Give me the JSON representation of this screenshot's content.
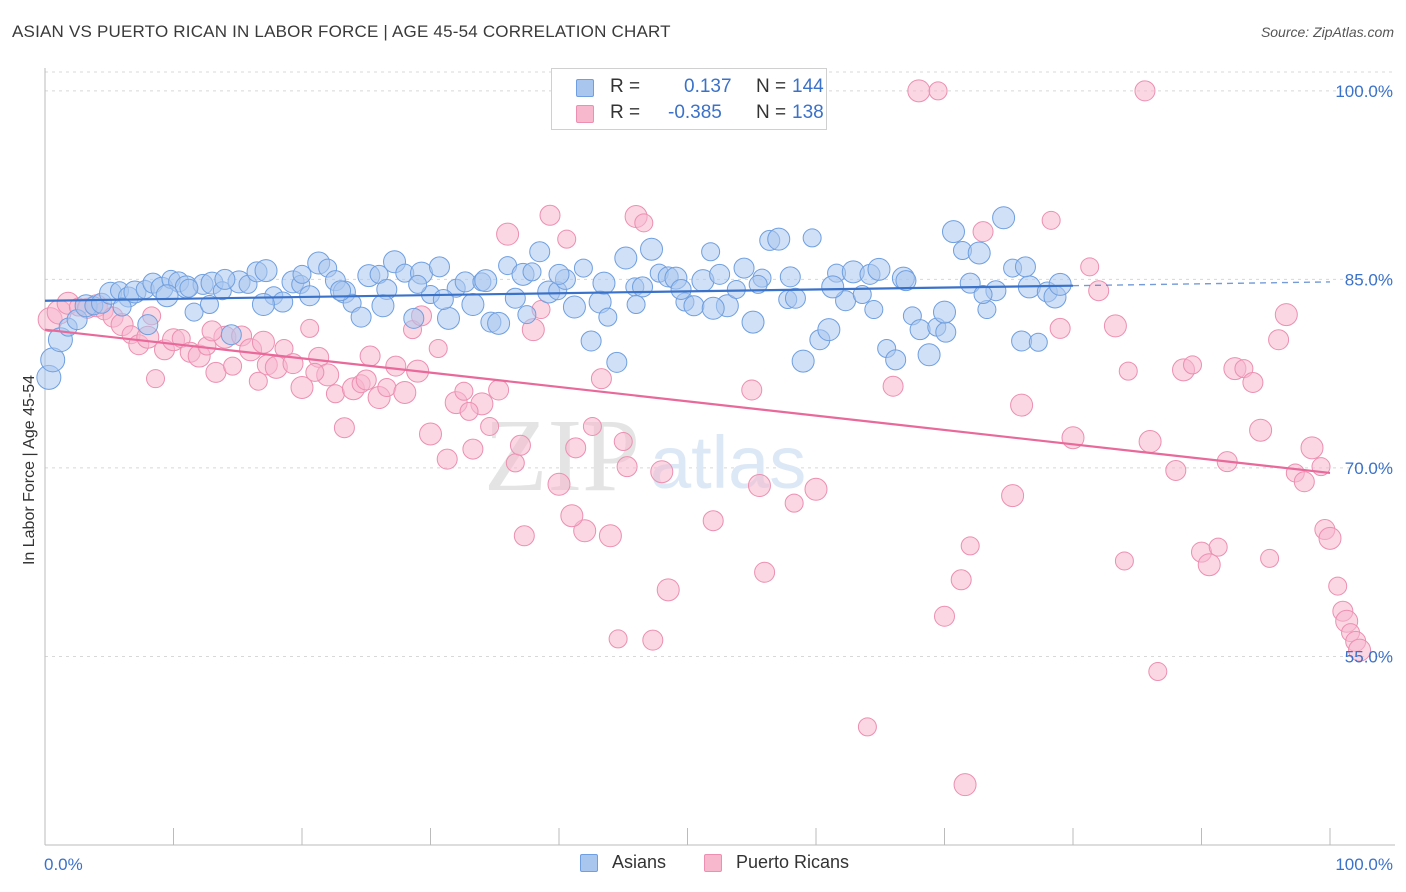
{
  "title": "ASIAN VS PUERTO RICAN IN LABOR FORCE | AGE 45-54 CORRELATION CHART",
  "source": "Source: ZipAtlas.com",
  "watermark": {
    "zip": "ZIP",
    "atlas": "atlas"
  },
  "legend_top": {
    "asian": {
      "r_label": "R =",
      "r_value": "0.137",
      "n_label": "N =",
      "n_value": "144"
    },
    "pr": {
      "r_label": "R =",
      "r_value": "-0.385",
      "n_label": "N =",
      "n_value": "138"
    }
  },
  "legend_bottom": {
    "asian": "Asians",
    "pr": "Puerto Ricans"
  },
  "colors": {
    "asian_fill": "#a9c6ef",
    "asian_stroke": "#6f9fe0",
    "asian_line": "#3b72c9",
    "pr_fill": "#f7b7cd",
    "pr_stroke": "#ec8fb0",
    "pr_line": "#e8699a",
    "tick_label": "#3b72c9",
    "grid": "#d8d8d8"
  },
  "chart_data": {
    "type": "scatter",
    "title": "ASIAN VS PUERTO RICAN IN LABOR FORCE | AGE 45-54 CORRELATION CHART",
    "xlabel": "",
    "ylabel": "In Labor Force | Age 45-54",
    "xlim": [
      0,
      100
    ],
    "ylim": [
      40,
      101.5
    ],
    "x_tick_labels": [
      "0.0%",
      "100.0%"
    ],
    "y_ticks": [
      55,
      70,
      85,
      100
    ],
    "y_tick_labels": [
      "55.0%",
      "70.0%",
      "85.0%",
      "100.0%"
    ],
    "grid": true,
    "legend_position": "top-center",
    "series": [
      {
        "name": "Asians",
        "r": 0.137,
        "n": 144,
        "trend": {
          "x": [
            0,
            80
          ],
          "y": [
            83.3,
            84.5
          ],
          "dashed_to_x": 100,
          "dashed_to_y": 84.8
        },
        "points": [
          [
            0.3,
            77.2
          ],
          [
            0.6,
            78.6
          ],
          [
            1.2,
            80.2
          ],
          [
            1.8,
            81.2
          ],
          [
            2.5,
            81.8
          ],
          [
            3.2,
            82.9
          ],
          [
            3.8,
            82.9
          ],
          [
            4.4,
            83.1
          ],
          [
            5.1,
            83.9
          ],
          [
            5.8,
            84.1
          ],
          [
            6.5,
            83.6
          ],
          [
            7.0,
            84.0
          ],
          [
            7.8,
            84.2
          ],
          [
            8.4,
            84.7
          ],
          [
            9.1,
            84.3
          ],
          [
            9.8,
            85.0
          ],
          [
            10.4,
            84.8
          ],
          [
            11.0,
            84.4
          ],
          [
            11.6,
            82.4
          ],
          [
            12.3,
            84.6
          ],
          [
            13.0,
            84.7
          ],
          [
            13.8,
            84.1
          ],
          [
            14.5,
            80.6
          ],
          [
            15.1,
            84.8
          ],
          [
            15.8,
            84.6
          ],
          [
            16.5,
            85.6
          ],
          [
            17.2,
            85.7
          ],
          [
            17.8,
            83.7
          ],
          [
            18.5,
            83.2
          ],
          [
            19.3,
            84.8
          ],
          [
            19.9,
            84.6
          ],
          [
            20.6,
            83.7
          ],
          [
            21.3,
            86.3
          ],
          [
            22.0,
            85.9
          ],
          [
            22.6,
            84.9
          ],
          [
            23.3,
            84.0
          ],
          [
            23.9,
            83.1
          ],
          [
            24.6,
            82.0
          ],
          [
            25.2,
            85.3
          ],
          [
            26.0,
            85.4
          ],
          [
            26.6,
            84.2
          ],
          [
            27.2,
            86.4
          ],
          [
            28.0,
            85.5
          ],
          [
            28.7,
            81.9
          ],
          [
            29.3,
            85.5
          ],
          [
            30.0,
            83.8
          ],
          [
            30.7,
            86.0
          ],
          [
            31.4,
            81.9
          ],
          [
            32.0,
            84.3
          ],
          [
            32.7,
            84.8
          ],
          [
            33.3,
            83.0
          ],
          [
            34.0,
            84.8
          ],
          [
            34.7,
            81.6
          ],
          [
            35.3,
            81.5
          ],
          [
            36.0,
            86.1
          ],
          [
            36.6,
            83.5
          ],
          [
            37.2,
            85.4
          ],
          [
            37.9,
            85.6
          ],
          [
            38.5,
            87.2
          ],
          [
            39.2,
            84.0
          ],
          [
            39.9,
            84.1
          ],
          [
            40.5,
            85.0
          ],
          [
            41.2,
            82.8
          ],
          [
            41.9,
            85.9
          ],
          [
            42.5,
            80.1
          ],
          [
            43.2,
            83.2
          ],
          [
            43.8,
            82.0
          ],
          [
            44.5,
            78.4
          ],
          [
            45.2,
            86.7
          ],
          [
            45.9,
            84.4
          ],
          [
            46.5,
            84.4
          ],
          [
            47.2,
            87.4
          ],
          [
            47.8,
            85.5
          ],
          [
            48.5,
            85.2
          ],
          [
            49.1,
            85.1
          ],
          [
            49.8,
            83.2
          ],
          [
            50.5,
            82.9
          ],
          [
            51.2,
            84.9
          ],
          [
            51.8,
            87.2
          ],
          [
            52.5,
            85.4
          ],
          [
            53.1,
            82.9
          ],
          [
            53.8,
            84.2
          ],
          [
            54.4,
            85.9
          ],
          [
            55.1,
            81.6
          ],
          [
            55.8,
            85.1
          ],
          [
            56.4,
            88.1
          ],
          [
            57.1,
            88.2
          ],
          [
            57.8,
            83.4
          ],
          [
            58.4,
            83.5
          ],
          [
            59.0,
            78.5
          ],
          [
            59.7,
            88.3
          ],
          [
            60.3,
            80.2
          ],
          [
            61.0,
            81.0
          ],
          [
            61.6,
            85.5
          ],
          [
            62.3,
            83.3
          ],
          [
            62.9,
            85.6
          ],
          [
            63.6,
            83.8
          ],
          [
            64.2,
            85.4
          ],
          [
            64.9,
            85.8
          ],
          [
            65.5,
            79.5
          ],
          [
            66.2,
            78.6
          ],
          [
            66.8,
            85.1
          ],
          [
            67.5,
            82.1
          ],
          [
            68.1,
            81.0
          ],
          [
            68.8,
            79.0
          ],
          [
            69.4,
            81.2
          ],
          [
            70.1,
            80.8
          ],
          [
            70.7,
            88.8
          ],
          [
            71.4,
            87.3
          ],
          [
            72.0,
            84.7
          ],
          [
            72.7,
            87.1
          ],
          [
            73.3,
            82.6
          ],
          [
            74.0,
            84.1
          ],
          [
            74.6,
            89.9
          ],
          [
            75.3,
            85.9
          ],
          [
            76.0,
            80.1
          ],
          [
            76.6,
            84.4
          ],
          [
            77.3,
            80.0
          ],
          [
            78.0,
            84.0
          ],
          [
            78.6,
            83.6
          ],
          [
            11.2,
            84.3
          ],
          [
            14.0,
            85.0
          ],
          [
            17.0,
            83.0
          ],
          [
            20.0,
            85.4
          ],
          [
            23.0,
            84.1
          ],
          [
            26.3,
            82.9
          ],
          [
            29.0,
            84.6
          ],
          [
            31.0,
            83.4
          ],
          [
            34.3,
            84.9
          ],
          [
            37.5,
            82.2
          ],
          [
            40.0,
            85.4
          ],
          [
            43.5,
            84.7
          ],
          [
            46.0,
            83.0
          ],
          [
            49.5,
            84.2
          ],
          [
            52.0,
            82.7
          ],
          [
            55.5,
            84.6
          ],
          [
            58.0,
            85.2
          ],
          [
            61.3,
            84.4
          ],
          [
            64.5,
            82.6
          ],
          [
            67.0,
            84.9
          ],
          [
            70.0,
            82.4
          ],
          [
            73.0,
            83.8
          ],
          [
            76.3,
            86.0
          ],
          [
            79.0,
            84.6
          ],
          [
            6.0,
            82.8
          ],
          [
            8.0,
            81.4
          ],
          [
            9.5,
            83.7
          ],
          [
            12.8,
            83.0
          ]
        ]
      },
      {
        "name": "Puerto Ricans",
        "r": -0.385,
        "n": 138,
        "trend": {
          "x": [
            0,
            100
          ],
          "y": [
            81.0,
            69.6
          ]
        },
        "points": [
          [
            0.4,
            81.8
          ],
          [
            1.1,
            82.4
          ],
          [
            1.8,
            83.1
          ],
          [
            2.6,
            82.8
          ],
          [
            3.3,
            82.7
          ],
          [
            4.0,
            82.9
          ],
          [
            4.6,
            82.5
          ],
          [
            5.3,
            82.0
          ],
          [
            6.0,
            81.4
          ],
          [
            6.7,
            80.6
          ],
          [
            7.3,
            79.8
          ],
          [
            8.0,
            80.4
          ],
          [
            8.6,
            77.1
          ],
          [
            9.3,
            79.4
          ],
          [
            10.0,
            80.2
          ],
          [
            10.6,
            80.3
          ],
          [
            11.3,
            79.2
          ],
          [
            12.0,
            78.9
          ],
          [
            12.6,
            79.7
          ],
          [
            13.3,
            77.6
          ],
          [
            14.0,
            80.4
          ],
          [
            14.6,
            78.1
          ],
          [
            15.3,
            80.5
          ],
          [
            16.0,
            79.4
          ],
          [
            16.6,
            76.9
          ],
          [
            17.3,
            78.2
          ],
          [
            18.0,
            78.0
          ],
          [
            18.6,
            79.5
          ],
          [
            19.3,
            78.3
          ],
          [
            20.0,
            76.4
          ],
          [
            20.6,
            81.1
          ],
          [
            21.3,
            78.8
          ],
          [
            22.0,
            77.4
          ],
          [
            22.6,
            75.9
          ],
          [
            23.3,
            73.2
          ],
          [
            24.0,
            76.3
          ],
          [
            24.6,
            76.7
          ],
          [
            25.3,
            78.9
          ],
          [
            26.0,
            75.6
          ],
          [
            26.6,
            76.4
          ],
          [
            27.3,
            78.1
          ],
          [
            28.0,
            76.0
          ],
          [
            28.6,
            81.0
          ],
          [
            29.3,
            82.1
          ],
          [
            30.0,
            72.7
          ],
          [
            30.6,
            79.5
          ],
          [
            31.3,
            70.7
          ],
          [
            32.0,
            75.2
          ],
          [
            32.6,
            76.1
          ],
          [
            33.3,
            71.5
          ],
          [
            34.0,
            75.1
          ],
          [
            34.6,
            73.3
          ],
          [
            35.3,
            76.2
          ],
          [
            36.0,
            88.6
          ],
          [
            36.6,
            70.4
          ],
          [
            37.3,
            64.6
          ],
          [
            38.0,
            81.0
          ],
          [
            38.6,
            82.6
          ],
          [
            39.3,
            90.1
          ],
          [
            40.0,
            68.7
          ],
          [
            40.6,
            88.2
          ],
          [
            41.3,
            71.6
          ],
          [
            42.0,
            65.0
          ],
          [
            42.6,
            73.3
          ],
          [
            43.3,
            77.1
          ],
          [
            44.0,
            64.6
          ],
          [
            44.6,
            56.4
          ],
          [
            45.3,
            70.1
          ],
          [
            46.0,
            90.0
          ],
          [
            46.6,
            89.5
          ],
          [
            47.3,
            56.3
          ],
          [
            48.0,
            69.7
          ],
          [
            49.3,
            100.0
          ],
          [
            55.0,
            76.2
          ],
          [
            55.6,
            68.6
          ],
          [
            58.3,
            67.2
          ],
          [
            66.0,
            76.5
          ],
          [
            68.0,
            100.0
          ],
          [
            69.5,
            100.0
          ],
          [
            71.3,
            61.1
          ],
          [
            71.6,
            44.8
          ],
          [
            72.0,
            63.8
          ],
          [
            73.0,
            88.8
          ],
          [
            75.3,
            67.8
          ],
          [
            78.3,
            89.7
          ],
          [
            79.0,
            81.1
          ],
          [
            80.0,
            72.4
          ],
          [
            81.3,
            86.0
          ],
          [
            82.0,
            84.1
          ],
          [
            83.3,
            81.3
          ],
          [
            84.3,
            77.7
          ],
          [
            85.6,
            100.0
          ],
          [
            86.0,
            72.1
          ],
          [
            86.6,
            53.8
          ],
          [
            88.0,
            69.8
          ],
          [
            88.6,
            77.8
          ],
          [
            89.3,
            78.2
          ],
          [
            90.0,
            63.3
          ],
          [
            90.6,
            62.3
          ],
          [
            91.3,
            63.7
          ],
          [
            92.0,
            70.5
          ],
          [
            92.6,
            77.9
          ],
          [
            93.3,
            77.9
          ],
          [
            94.0,
            76.8
          ],
          [
            94.6,
            73.0
          ],
          [
            95.3,
            62.8
          ],
          [
            96.0,
            80.2
          ],
          [
            96.6,
            82.2
          ],
          [
            97.3,
            69.6
          ],
          [
            98.0,
            68.9
          ],
          [
            98.6,
            71.6
          ],
          [
            99.3,
            70.1
          ],
          [
            99.6,
            65.1
          ],
          [
            100.0,
            64.4
          ],
          [
            100.6,
            60.6
          ],
          [
            101.0,
            58.6
          ],
          [
            101.3,
            57.8
          ],
          [
            101.6,
            56.9
          ],
          [
            102.0,
            56.2
          ],
          [
            102.3,
            55.5
          ],
          [
            8.3,
            82.1
          ],
          [
            13.0,
            80.9
          ],
          [
            17.0,
            80.0
          ],
          [
            21.0,
            77.6
          ],
          [
            25.0,
            77.0
          ],
          [
            29.0,
            77.7
          ],
          [
            33.0,
            74.5
          ],
          [
            37.0,
            71.8
          ],
          [
            41.0,
            66.2
          ],
          [
            45.0,
            72.1
          ],
          [
            52.0,
            65.8
          ],
          [
            60.0,
            68.3
          ],
          [
            64.0,
            49.4
          ],
          [
            70.0,
            58.2
          ],
          [
            76.0,
            75.0
          ],
          [
            84.0,
            62.6
          ],
          [
            56.0,
            61.7
          ],
          [
            48.5,
            60.3
          ]
        ]
      }
    ]
  }
}
